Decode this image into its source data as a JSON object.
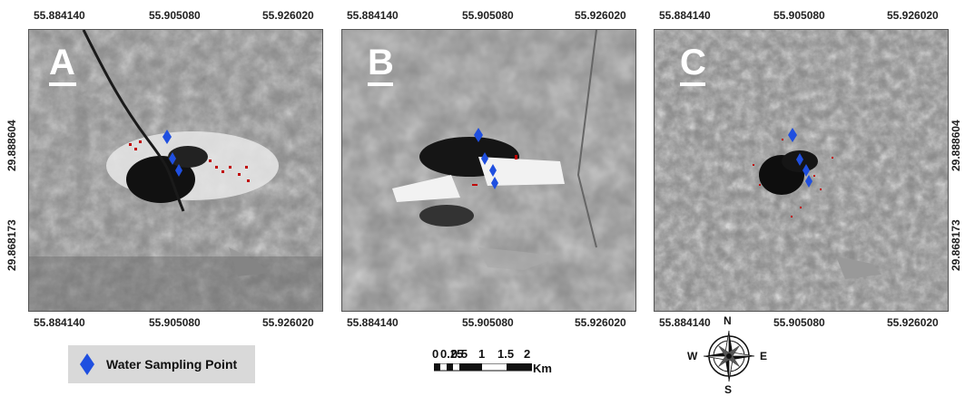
{
  "panels": [
    {
      "label": "A",
      "x_top": [
        "55.884140",
        "55.905080",
        "55.926020"
      ],
      "x_bottom": [
        "55.884140",
        "55.905080",
        "55.926020"
      ],
      "y_left": [
        "29.888604",
        "29.868173"
      ]
    },
    {
      "label": "B",
      "x_top": [
        "55.884140",
        "55.905080",
        "55.926020"
      ],
      "x_bottom": [
        "55.884140",
        "55.905080",
        "55.926020"
      ]
    },
    {
      "label": "C",
      "x_top": [
        "55.884140",
        "55.905080",
        "55.926020"
      ],
      "x_bottom": [
        "55.884140",
        "55.905080",
        "55.926020"
      ],
      "y_right": [
        "29.888604",
        "29.868173"
      ]
    }
  ],
  "legend": {
    "symbol": "blue-diamond-icon",
    "label": "Water Sampling Point",
    "color": "#1f4fe0"
  },
  "scale_bar": {
    "ticks": [
      "0",
      "0.25",
      "0.5",
      "1",
      "1.5",
      "2"
    ],
    "unit": "Km"
  },
  "compass": {
    "n": "N",
    "s": "S",
    "e": "E",
    "w": "W"
  },
  "colors": {
    "sampling_point": "#1f4fe0",
    "highlight": "#c00000"
  }
}
